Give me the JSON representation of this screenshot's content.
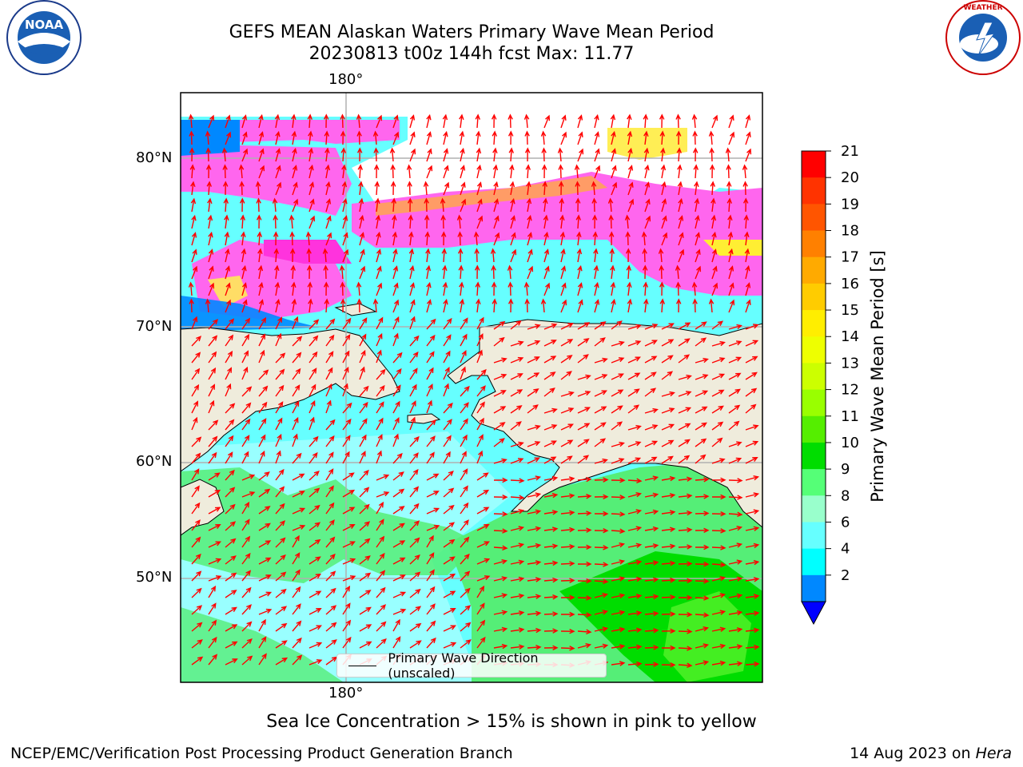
{
  "title_line1": "GEFS MEAN Alaskan Waters Primary Wave Mean Period",
  "title_line2": "20230813 t00z 144h fcst   Max: 11.77",
  "lon_label_top": "180°",
  "lon_label_bottom": "180°",
  "lat_labels": [
    "80°N",
    "70°N",
    "60°N",
    "50°N"
  ],
  "legend_label": "Primary Wave Direction (unscaled)",
  "caption": "Sea Ice Concentration > 15% is shown in pink to yellow",
  "footer_left": "NCEP/EMC/Verification Post Processing Product Generation Branch",
  "footer_date": "14 Aug 2023 on",
  "footer_host": "Hera",
  "colorbar": {
    "label": "Primary Wave Mean Period [s]",
    "ticks": [
      "21",
      "20",
      "19",
      "18",
      "17",
      "16",
      "15",
      "14",
      "13",
      "12",
      "11",
      "10",
      "9",
      "8",
      "6",
      "4",
      "2"
    ],
    "colors": [
      "#ff0000",
      "#ff3300",
      "#ff5500",
      "#ff8000",
      "#ffaa00",
      "#ffcc00",
      "#ffee00",
      "#eeff00",
      "#ccff00",
      "#99ff00",
      "#55ee00",
      "#00dd00",
      "#55ff77",
      "#99ffcc",
      "#66ffff",
      "#00ffff",
      "#0088ff"
    ],
    "extend_color": "#0000ff"
  },
  "colors": {
    "land": "#efecdc",
    "ice_pink": "#ff66ee",
    "ice_magenta": "#ff33dd",
    "ice_yellow": "#ffee33",
    "arrow": "#ff0000"
  },
  "logos": {
    "left": "NOAA",
    "right_ring": "NATIONAL WEATHER SERVICE",
    "left_ring": "NATIONAL OCEANIC AND ATMOSPHERIC ADMINISTRATION"
  }
}
